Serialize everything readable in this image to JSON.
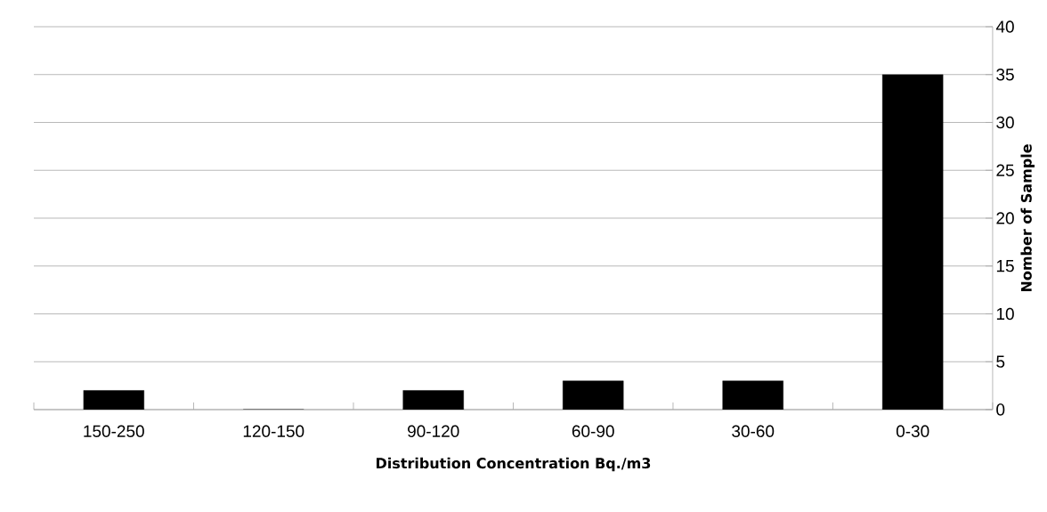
{
  "chart_data": {
    "type": "bar",
    "xlabel": "Distribution Concentration Bq./m3",
    "ylabel": "Nomber of Sample",
    "categories": [
      "150-250",
      "120-150",
      "90-120",
      "60-90",
      "30-60",
      "0-30"
    ],
    "values": [
      2,
      0,
      2,
      3,
      3,
      35
    ],
    "color": "#000000",
    "ylim": [
      0,
      40
    ],
    "yticks": [
      0,
      5,
      10,
      15,
      20,
      25,
      30,
      35,
      40
    ],
    "grid": "y"
  }
}
